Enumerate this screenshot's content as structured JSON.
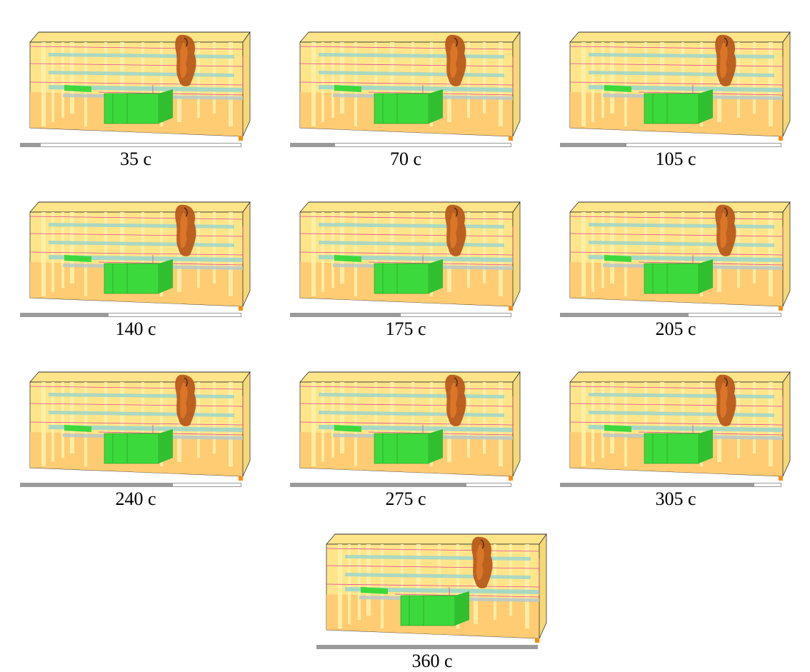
{
  "frames": [
    {
      "caption": "35 c",
      "progress": 0.09
    },
    {
      "caption": "70 c",
      "progress": 0.2
    },
    {
      "caption": "105 c",
      "progress": 0.3
    },
    {
      "caption": "140 c",
      "progress": 0.4
    },
    {
      "caption": "175 c",
      "progress": 0.5
    },
    {
      "caption": "205 c",
      "progress": 0.58
    },
    {
      "caption": "240 c",
      "progress": 0.69
    },
    {
      "caption": "275 c",
      "progress": 0.8
    },
    {
      "caption": "305 c",
      "progress": 0.88
    },
    {
      "caption": "360 c",
      "progress": 1.0
    }
  ],
  "colors": {
    "building": "#ffe58a",
    "building_floor": "#ffc870",
    "columns": "#fff1a8",
    "slab": "#9dd6c9",
    "pink_lines": "#e0479a",
    "green_box": "#3cd93c",
    "fire": "#b85a1a",
    "legend_swatch": "#ff8c00",
    "progress_fill": "#9a9a9a"
  }
}
